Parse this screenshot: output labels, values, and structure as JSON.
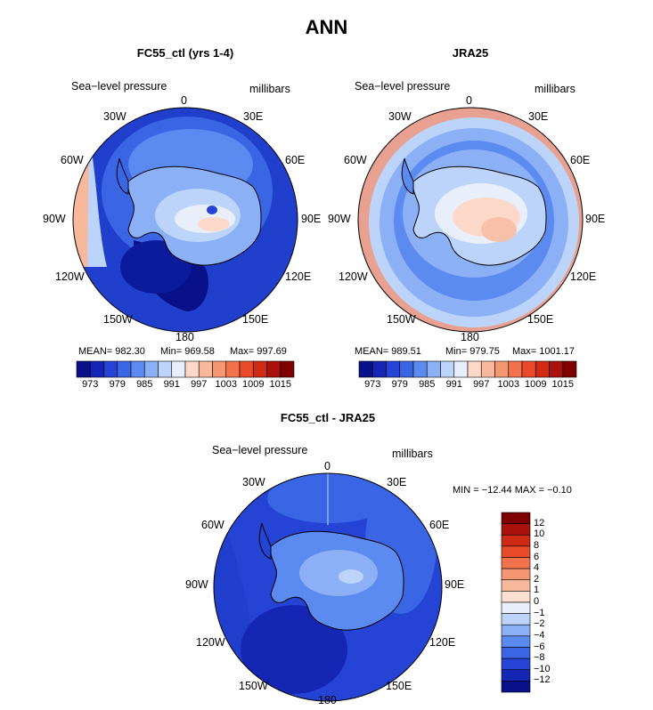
{
  "title": "ANN",
  "field_label": "Sea−level pressure",
  "units_label": "millibars",
  "lon_labels": {
    "lon_0": "0",
    "lon_30e": "30E",
    "lon_60e": "60E",
    "lon_90e": "90E",
    "lon_120e": "120E",
    "lon_150e": "150E",
    "lon_180": "180",
    "lon_150w": "150W",
    "lon_120w": "120W",
    "lon_90w": "90W",
    "lon_60w": "60W",
    "lon_30w": "30W"
  },
  "panels": [
    {
      "title": "FC55_ctl (yrs 1-4)",
      "mean": "MEAN= 982.30",
      "min": "Min= 969.58",
      "max": "Max= 997.69"
    },
    {
      "title": "JRA25",
      "mean": "MEAN= 989.51",
      "min": "Min= 979.75",
      "max": "Max= 1001.17"
    },
    {
      "title": "FC55_ctl - JRA25",
      "minmax": "MIN = −12.44 MAX =  −0.10"
    }
  ],
  "colorbar_abs": {
    "ticks": [
      "973",
      "979",
      "985",
      "991",
      "997",
      "1003",
      "1009",
      "1015"
    ],
    "colors": [
      "#08108a",
      "#1626b4",
      "#2544d6",
      "#3a66e6",
      "#5b8af0",
      "#8cb0f6",
      "#bcd4fa",
      "#e8eefa",
      "#fbd8c8",
      "#f8b89c",
      "#f59672",
      "#f2724c",
      "#e94a2a",
      "#cf2a14",
      "#a8120a",
      "#7e0000"
    ]
  },
  "colorbar_diff": {
    "ticks": [
      "12",
      "10",
      "8",
      "6",
      "4",
      "2",
      "1",
      "0",
      "−1",
      "−2",
      "−4",
      "−6",
      "−8",
      "−10",
      "−12"
    ],
    "colors": [
      "#7e0000",
      "#a8120a",
      "#cf2a14",
      "#e94a2a",
      "#f2724c",
      "#f59672",
      "#f8b89c",
      "#fbe0d2",
      "#e8eefa",
      "#bcd4fa",
      "#8cb0f6",
      "#5b8af0",
      "#3a66e6",
      "#2544d6",
      "#1626b4",
      "#08108a"
    ]
  }
}
